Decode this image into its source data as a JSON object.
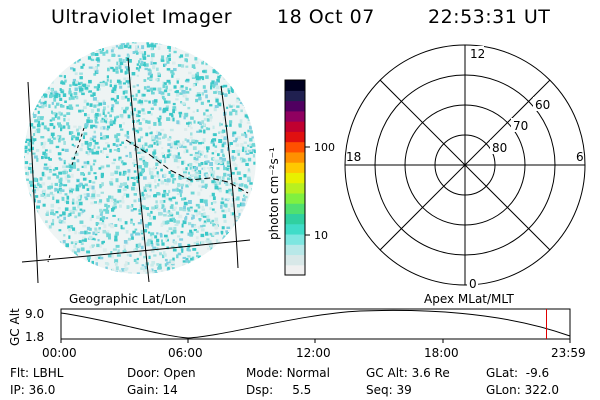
{
  "header": {
    "title": "Ultraviolet Imager",
    "date": "18 Oct 07",
    "time": "22:53:31 UT"
  },
  "colorbar": {
    "label": "photon cm⁻²s⁻¹",
    "ticks": [
      "100",
      "10"
    ],
    "colors": [
      "#f0f0f0",
      "#d8e8e8",
      "#b8e8e8",
      "#7ee6e0",
      "#40dcc8",
      "#30d0a0",
      "#50e070",
      "#80f040",
      "#b8f020",
      "#e8f000",
      "#ffc800",
      "#ff9000",
      "#ff5000",
      "#e01010",
      "#c00030",
      "#900060",
      "#500060",
      "#202050",
      "#000020"
    ]
  },
  "image_panel": {
    "label": "Geographic Lat/Lon",
    "dot_colors": [
      "#6fd6d6",
      "#9fe0e0",
      "#c8eaea",
      "#3cc8c8",
      "#dcecec",
      "#80d0e0"
    ]
  },
  "polar_panel": {
    "label": "Apex MLat/MLT",
    "mlt_labels": {
      "top": "12",
      "bottom": "0",
      "left": "18",
      "right": "6"
    },
    "lat_labels": [
      "60",
      "70",
      "80"
    ]
  },
  "alt_plot": {
    "ylabel": "GC Alt",
    "yticks": [
      "9.0",
      "1.8"
    ],
    "xticks": [
      "00:00",
      "06:00",
      "12:00",
      "18:00",
      "23:59"
    ],
    "marker_color": "#e00000",
    "marker_time_hours": 22.89
  },
  "info": {
    "filter_label": "Flt:",
    "filter_value": "LBHL",
    "door_label": "Door:",
    "door_value": "Open",
    "mode_label": "Mode:",
    "mode_value": "Normal",
    "gcalt_label": "GC Alt:",
    "gcalt_value": "3.6 Re",
    "glat_label": "GLat:",
    "glat_value": "-9.6",
    "ip_label": "IP:",
    "ip_value": "36.0",
    "gain_label": "Gain:",
    "gain_value": "14",
    "dsp_label": "Dsp:",
    "dsp_value": "5.5",
    "seq_label": "Seq:",
    "seq_value": "39",
    "glon_label": "GLon:",
    "glon_value": "322.0"
  }
}
